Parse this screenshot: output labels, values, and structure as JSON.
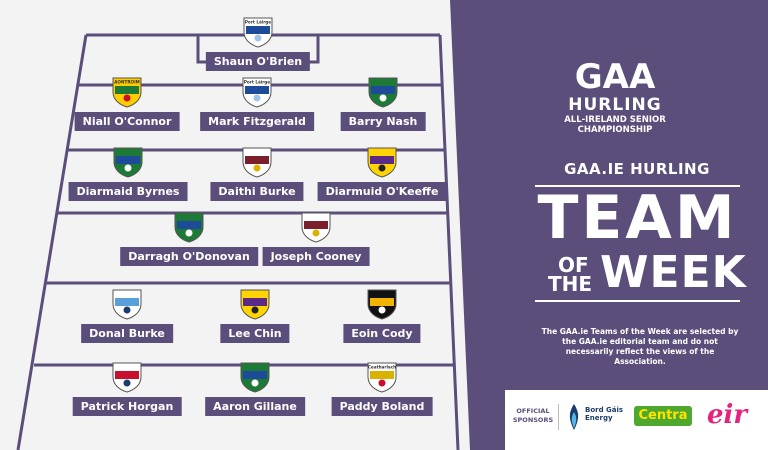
{
  "brand": {
    "organisation": "GAA",
    "sport": "HURLING",
    "competition_line1": "ALL-IRELAND SENIOR",
    "competition_line2": "CHAMPIONSHIP"
  },
  "header": {
    "section": "GAA.IE HURLING",
    "title_team": "TEAM",
    "title_of": "OF",
    "title_the": "THE",
    "title_week": "WEEK"
  },
  "disclaimer": "The GAA.ie Teams of the Week are selected by the GAA.ie editorial team and do not necessarily reflect the views of the Association.",
  "sponsors": {
    "label": "OFFICIAL SPONSORS",
    "bordgais": "Bord Gáis Energy",
    "centra": "Centra",
    "eir": "eir"
  },
  "colors": {
    "purple": "#5c4e7a",
    "pitch_background": "#f3f3f3",
    "text": "#ffffff"
  },
  "players": [
    {
      "name": "Shaun O'Brien",
      "crest": "waterford-crest",
      "crest_text": "Port Láirge"
    },
    {
      "name": "Niall O'Connor",
      "crest": "antrim-crest",
      "crest_text": "AONTROIM"
    },
    {
      "name": "Mark Fitzgerald",
      "crest": "waterford-crest",
      "crest_text": "Port Láirge"
    },
    {
      "name": "Barry Nash",
      "crest": "limerick-crest",
      "crest_text": ""
    },
    {
      "name": "Diarmaid Byrnes",
      "crest": "limerick-crest",
      "crest_text": ""
    },
    {
      "name": "Daithi Burke",
      "crest": "galway-crest",
      "crest_text": ""
    },
    {
      "name": "Diarmuid O'Keeffe",
      "crest": "wexford-crest",
      "crest_text": ""
    },
    {
      "name": "Darragh O'Donovan",
      "crest": "limerick-crest",
      "crest_text": ""
    },
    {
      "name": "Joseph Cooney",
      "crest": "galway-crest",
      "crest_text": ""
    },
    {
      "name": "Donal Burke",
      "crest": "dublin-crest",
      "crest_text": ""
    },
    {
      "name": "Lee Chin",
      "crest": "wexford-crest",
      "crest_text": ""
    },
    {
      "name": "Eoin Cody",
      "crest": "kilkenny-crest",
      "crest_text": ""
    },
    {
      "name": "Patrick Horgan",
      "crest": "cork-crest",
      "crest_text": ""
    },
    {
      "name": "Aaron Gillane",
      "crest": "limerick-crest",
      "crest_text": ""
    },
    {
      "name": "Paddy Boland",
      "crest": "carlow-crest",
      "crest_text": "Ceatharlach"
    }
  ]
}
